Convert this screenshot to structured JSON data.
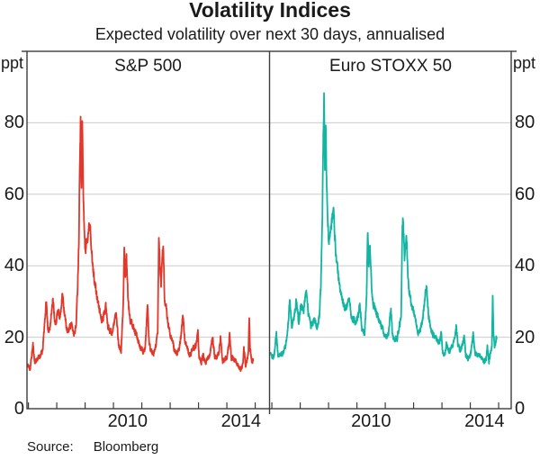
{
  "header": {
    "title": "Volatility Indices",
    "subtitle": "Expected volatility over next 30 days, annualised"
  },
  "footer": {
    "source_label": "Source:",
    "source_value": "Bloomberg"
  },
  "chart_data": {
    "type": "line",
    "title": "Volatility Indices",
    "subtitle": "Expected volatility over next 30 days, annualised",
    "unit_label": "ppt",
    "ylim": [
      0,
      100
    ],
    "yticks": [
      0,
      20,
      40,
      60,
      80
    ],
    "grid": true,
    "xlim_years": [
      2007,
      2015.5
    ],
    "year_ticks": [
      2007,
      2008,
      2009,
      2010,
      2011,
      2012,
      2013,
      2014,
      2015
    ],
    "year_labels": [
      "2010",
      "2014"
    ],
    "colors": {
      "grid": "#cccccc",
      "frame": "#3c3c3c",
      "text": "#1a1a1a"
    },
    "render": {
      "noise_amp": 1.6,
      "step_years": 0.005
    },
    "panels": [
      {
        "label": "S&P 500",
        "color": "#e2372b",
        "seed": 11,
        "floor": 9.8,
        "keypoints": [
          [
            2006.96,
            12
          ],
          [
            2007.0,
            12
          ],
          [
            2007.06,
            11
          ],
          [
            2007.16,
            18
          ],
          [
            2007.22,
            13
          ],
          [
            2007.32,
            14
          ],
          [
            2007.42,
            15
          ],
          [
            2007.5,
            16
          ],
          [
            2007.58,
            25
          ],
          [
            2007.63,
            30
          ],
          [
            2007.7,
            21
          ],
          [
            2007.78,
            24
          ],
          [
            2007.86,
            31
          ],
          [
            2007.95,
            23
          ],
          [
            2008.03,
            27
          ],
          [
            2008.12,
            26
          ],
          [
            2008.2,
            32
          ],
          [
            2008.3,
            25
          ],
          [
            2008.38,
            21
          ],
          [
            2008.5,
            24
          ],
          [
            2008.6,
            21
          ],
          [
            2008.68,
            23
          ],
          [
            2008.73,
            33
          ],
          [
            2008.78,
            47
          ],
          [
            2008.81,
            70
          ],
          [
            2008.84,
            80
          ],
          [
            2008.87,
            63
          ],
          [
            2008.9,
            81
          ],
          [
            2008.94,
            58
          ],
          [
            2009.0,
            44
          ],
          [
            2009.06,
            47
          ],
          [
            2009.12,
            50
          ],
          [
            2009.18,
            52
          ],
          [
            2009.25,
            41
          ],
          [
            2009.33,
            36
          ],
          [
            2009.42,
            31
          ],
          [
            2009.5,
            28
          ],
          [
            2009.58,
            25
          ],
          [
            2009.65,
            26
          ],
          [
            2009.73,
            29
          ],
          [
            2009.8,
            23
          ],
          [
            2009.88,
            22
          ],
          [
            2009.96,
            21
          ],
          [
            2010.04,
            25
          ],
          [
            2010.1,
            27
          ],
          [
            2010.18,
            18
          ],
          [
            2010.27,
            16
          ],
          [
            2010.34,
            28
          ],
          [
            2010.38,
            45
          ],
          [
            2010.42,
            36
          ],
          [
            2010.46,
            42
          ],
          [
            2010.52,
            30
          ],
          [
            2010.58,
            25
          ],
          [
            2010.65,
            24
          ],
          [
            2010.72,
            22
          ],
          [
            2010.8,
            21
          ],
          [
            2010.88,
            19
          ],
          [
            2010.96,
            17
          ],
          [
            2011.04,
            16
          ],
          [
            2011.12,
            17
          ],
          [
            2011.2,
            29
          ],
          [
            2011.26,
            18
          ],
          [
            2011.34,
            16
          ],
          [
            2011.42,
            15
          ],
          [
            2011.5,
            18
          ],
          [
            2011.56,
            21
          ],
          [
            2011.6,
            48
          ],
          [
            2011.64,
            40
          ],
          [
            2011.68,
            34
          ],
          [
            2011.72,
            43
          ],
          [
            2011.76,
            45
          ],
          [
            2011.8,
            31
          ],
          [
            2011.86,
            28
          ],
          [
            2011.92,
            24
          ],
          [
            2012.0,
            21
          ],
          [
            2012.08,
            19
          ],
          [
            2012.16,
            16
          ],
          [
            2012.24,
            15
          ],
          [
            2012.32,
            17
          ],
          [
            2012.4,
            22
          ],
          [
            2012.45,
            26
          ],
          [
            2012.52,
            19
          ],
          [
            2012.6,
            17
          ],
          [
            2012.68,
            15
          ],
          [
            2012.76,
            16
          ],
          [
            2012.84,
            17
          ],
          [
            2012.92,
            18
          ],
          [
            2012.98,
            22
          ],
          [
            2013.02,
            14
          ],
          [
            2013.1,
            13
          ],
          [
            2013.16,
            15
          ],
          [
            2013.24,
            13
          ],
          [
            2013.32,
            14
          ],
          [
            2013.4,
            15
          ],
          [
            2013.47,
            19
          ],
          [
            2013.5,
            20
          ],
          [
            2013.56,
            15
          ],
          [
            2013.64,
            14
          ],
          [
            2013.72,
            16
          ],
          [
            2013.78,
            20
          ],
          [
            2013.84,
            13
          ],
          [
            2013.92,
            14
          ],
          [
            2014.0,
            14
          ],
          [
            2014.06,
            17
          ],
          [
            2014.1,
            21
          ],
          [
            2014.16,
            14
          ],
          [
            2014.24,
            14
          ],
          [
            2014.32,
            13
          ],
          [
            2014.4,
            12
          ],
          [
            2014.48,
            11
          ],
          [
            2014.56,
            12
          ],
          [
            2014.6,
            17
          ],
          [
            2014.66,
            12
          ],
          [
            2014.72,
            14
          ],
          [
            2014.76,
            16
          ],
          [
            2014.79,
            26
          ],
          [
            2014.82,
            17
          ],
          [
            2014.86,
            14
          ],
          [
            2014.9,
            13
          ],
          [
            2014.93,
            14
          ]
        ]
      },
      {
        "label": "Euro STOXX 50",
        "color": "#12b4a2",
        "seed": 29,
        "floor": 12.4,
        "keypoints": [
          [
            2006.96,
            16
          ],
          [
            2007.0,
            15
          ],
          [
            2007.06,
            14
          ],
          [
            2007.16,
            21
          ],
          [
            2007.22,
            15
          ],
          [
            2007.32,
            15
          ],
          [
            2007.42,
            16
          ],
          [
            2007.5,
            18
          ],
          [
            2007.58,
            24
          ],
          [
            2007.63,
            31
          ],
          [
            2007.7,
            23
          ],
          [
            2007.78,
            25
          ],
          [
            2007.86,
            30
          ],
          [
            2007.95,
            24
          ],
          [
            2008.03,
            29
          ],
          [
            2008.12,
            27
          ],
          [
            2008.2,
            34
          ],
          [
            2008.3,
            26
          ],
          [
            2008.38,
            23
          ],
          [
            2008.5,
            25
          ],
          [
            2008.6,
            23
          ],
          [
            2008.68,
            26
          ],
          [
            2008.73,
            35
          ],
          [
            2008.78,
            53
          ],
          [
            2008.81,
            74
          ],
          [
            2008.84,
            87
          ],
          [
            2008.87,
            66
          ],
          [
            2008.9,
            78
          ],
          [
            2008.94,
            60
          ],
          [
            2009.0,
            47
          ],
          [
            2009.06,
            50
          ],
          [
            2009.12,
            53
          ],
          [
            2009.18,
            55
          ],
          [
            2009.25,
            44
          ],
          [
            2009.33,
            38
          ],
          [
            2009.42,
            33
          ],
          [
            2009.5,
            30
          ],
          [
            2009.58,
            28
          ],
          [
            2009.65,
            29
          ],
          [
            2009.73,
            31
          ],
          [
            2009.8,
            26
          ],
          [
            2009.88,
            25
          ],
          [
            2009.96,
            24
          ],
          [
            2010.04,
            26
          ],
          [
            2010.1,
            29
          ],
          [
            2010.18,
            22
          ],
          [
            2010.27,
            21
          ],
          [
            2010.34,
            31
          ],
          [
            2010.38,
            50
          ],
          [
            2010.42,
            40
          ],
          [
            2010.46,
            46
          ],
          [
            2010.52,
            33
          ],
          [
            2010.58,
            29
          ],
          [
            2010.65,
            28
          ],
          [
            2010.72,
            26
          ],
          [
            2010.8,
            24
          ],
          [
            2010.88,
            23
          ],
          [
            2010.96,
            21
          ],
          [
            2011.04,
            20
          ],
          [
            2011.12,
            21
          ],
          [
            2011.2,
            28
          ],
          [
            2011.26,
            20
          ],
          [
            2011.34,
            19
          ],
          [
            2011.42,
            20
          ],
          [
            2011.5,
            23
          ],
          [
            2011.56,
            26
          ],
          [
            2011.6,
            50
          ],
          [
            2011.63,
            53
          ],
          [
            2011.68,
            42
          ],
          [
            2011.72,
            46
          ],
          [
            2011.76,
            48
          ],
          [
            2011.8,
            36
          ],
          [
            2011.86,
            32
          ],
          [
            2011.92,
            29
          ],
          [
            2012.0,
            27
          ],
          [
            2012.08,
            24
          ],
          [
            2012.16,
            21
          ],
          [
            2012.24,
            22
          ],
          [
            2012.32,
            25
          ],
          [
            2012.4,
            31
          ],
          [
            2012.45,
            35
          ],
          [
            2012.52,
            26
          ],
          [
            2012.6,
            23
          ],
          [
            2012.68,
            21
          ],
          [
            2012.76,
            20
          ],
          [
            2012.84,
            19
          ],
          [
            2012.92,
            19
          ],
          [
            2012.98,
            21
          ],
          [
            2013.02,
            16
          ],
          [
            2013.1,
            15
          ],
          [
            2013.16,
            18
          ],
          [
            2013.24,
            16
          ],
          [
            2013.32,
            17
          ],
          [
            2013.4,
            18
          ],
          [
            2013.47,
            21
          ],
          [
            2013.5,
            24
          ],
          [
            2013.56,
            18
          ],
          [
            2013.64,
            16
          ],
          [
            2013.72,
            18
          ],
          [
            2013.78,
            20
          ],
          [
            2013.84,
            15
          ],
          [
            2013.92,
            14
          ],
          [
            2014.0,
            15
          ],
          [
            2014.06,
            18
          ],
          [
            2014.1,
            21
          ],
          [
            2014.16,
            16
          ],
          [
            2014.24,
            15
          ],
          [
            2014.32,
            15
          ],
          [
            2014.4,
            14
          ],
          [
            2014.48,
            13
          ],
          [
            2014.56,
            14
          ],
          [
            2014.6,
            17
          ],
          [
            2014.66,
            13
          ],
          [
            2014.72,
            16
          ],
          [
            2014.76,
            18
          ],
          [
            2014.79,
            31
          ],
          [
            2014.82,
            21
          ],
          [
            2014.86,
            17
          ],
          [
            2014.9,
            19
          ],
          [
            2014.93,
            20
          ]
        ]
      }
    ]
  }
}
